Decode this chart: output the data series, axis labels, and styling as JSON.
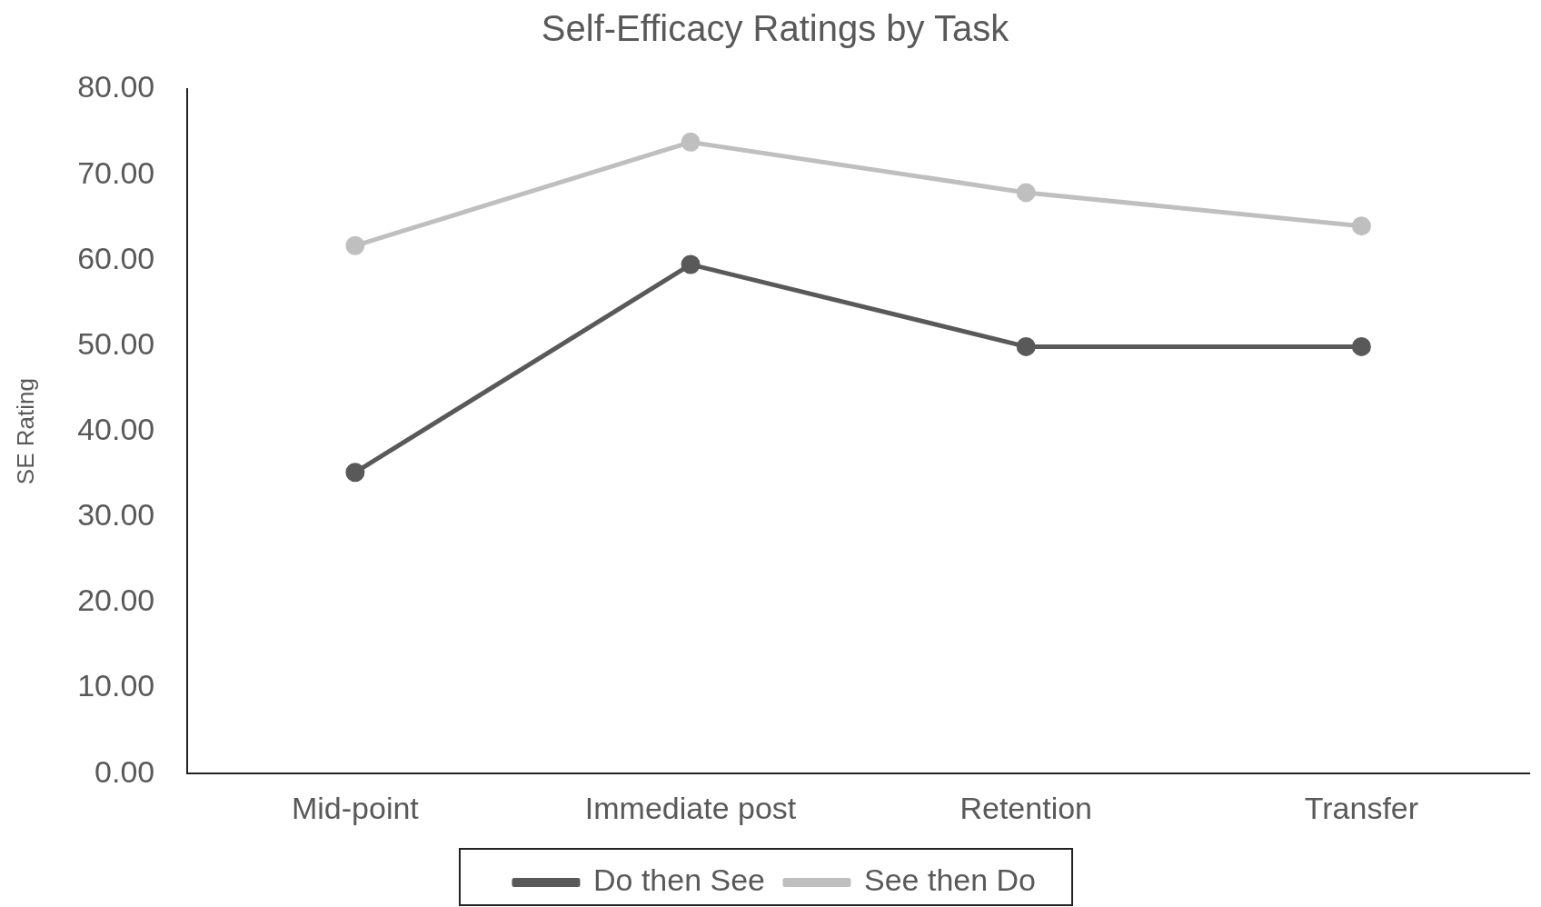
{
  "chart_data": {
    "type": "line",
    "title": "Self-Efficacy Ratings by Task",
    "ylabel": "SE Rating",
    "categories": [
      "Mid-point",
      "Immediate post",
      "Retention",
      "Transfer"
    ],
    "series": [
      {
        "name": "Do then See",
        "color": "#595959",
        "values": [
          35.2,
          59.5,
          49.9,
          49.9
        ]
      },
      {
        "name": "See then Do",
        "color": "#bfbfbf",
        "values": [
          61.7,
          73.8,
          67.9,
          64.0
        ]
      }
    ],
    "ylim": [
      0,
      80
    ],
    "yticks": [
      {
        "value": 0,
        "label": "0.00"
      },
      {
        "value": 10,
        "label": "10.00"
      },
      {
        "value": 20,
        "label": "20.00"
      },
      {
        "value": 30,
        "label": "30.00"
      },
      {
        "value": 40,
        "label": "40.00"
      },
      {
        "value": 50,
        "label": "50.00"
      },
      {
        "value": 60,
        "label": "60.00"
      },
      {
        "value": 70,
        "label": "70.00"
      },
      {
        "value": 80,
        "label": "80.00"
      }
    ],
    "grid": false,
    "legend": "bottom",
    "marker": "circle",
    "line_style": "solid"
  }
}
